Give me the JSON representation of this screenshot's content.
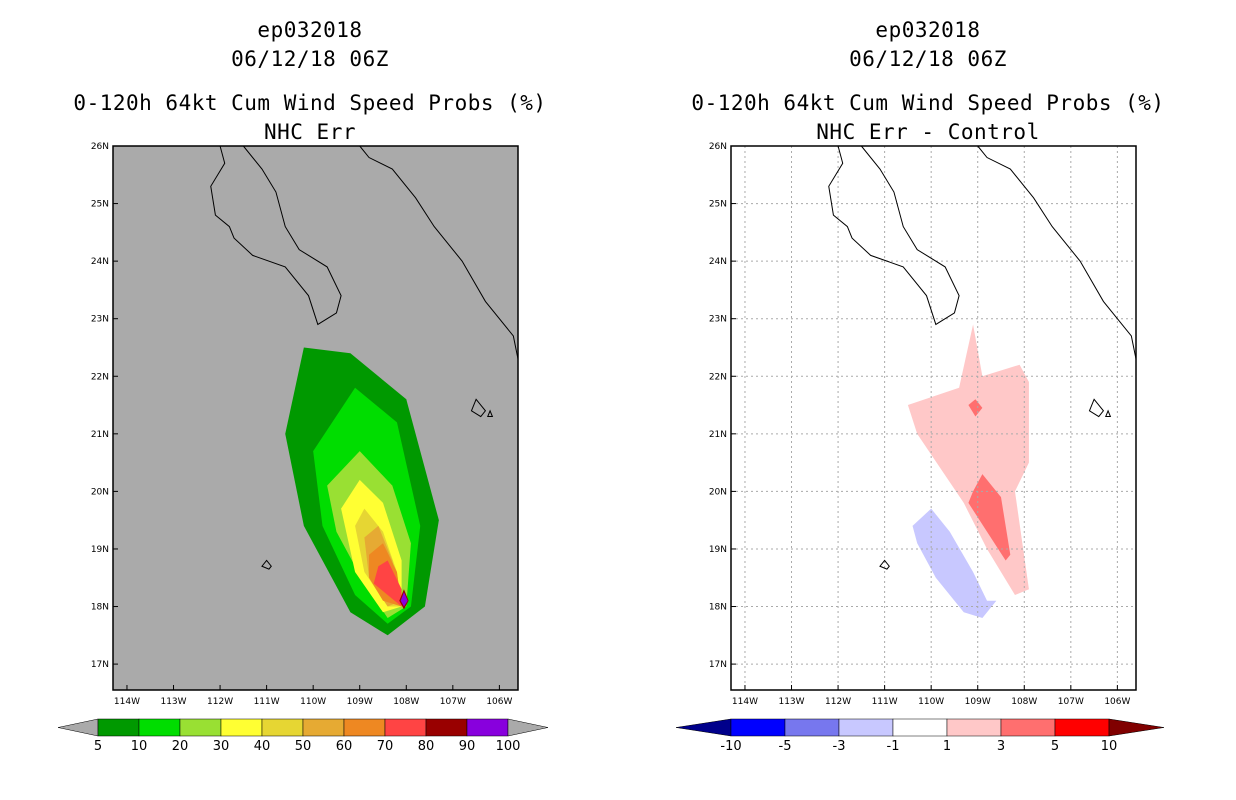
{
  "panels": [
    {
      "storm": "ep032018",
      "date": "06/12/18 06Z",
      "product": "0-120h 64kt Cum Wind Speed Probs (%)",
      "subtitle": "NHC Err",
      "xticks": [
        "114W",
        "113W",
        "112W",
        "111W",
        "110W",
        "109W",
        "108W",
        "107W",
        "106W"
      ],
      "yticks": [
        "17N",
        "18N",
        "19N",
        "20N",
        "21N",
        "22N",
        "23N",
        "24N",
        "25N",
        "26N"
      ],
      "colorbar_labels": [
        "5",
        "10",
        "20",
        "30",
        "40",
        "50",
        "60",
        "70",
        "80",
        "90",
        "100"
      ],
      "colorbar_colors": [
        "#009900",
        "#00dd00",
        "#99e033",
        "#ffff33",
        "#e6d633",
        "#e6aa33",
        "#ee8822",
        "#ff4444",
        "#990000",
        "#8800dd"
      ],
      "background": "#aaaaaa"
    },
    {
      "storm": "ep032018",
      "date": "06/12/18 06Z",
      "product": "0-120h 64kt Cum Wind Speed Probs (%)",
      "subtitle": "NHC Err - Control",
      "xticks": [
        "114W",
        "113W",
        "112W",
        "111W",
        "110W",
        "109W",
        "108W",
        "107W",
        "106W"
      ],
      "yticks": [
        "17N",
        "18N",
        "19N",
        "20N",
        "21N",
        "22N",
        "23N",
        "24N",
        "25N",
        "26N"
      ],
      "colorbar_labels": [
        "-10",
        "-5",
        "-3",
        "-1",
        "1",
        "3",
        "5",
        "10"
      ],
      "colorbar_colors": [
        "#0000ff",
        "#7777ee",
        "#c8c8ff",
        "#ffffff",
        "#ffc8c8",
        "#ff6f6f",
        "#ff0000"
      ],
      "colorbar_end_colors": [
        "#00008b",
        "#800000"
      ],
      "background": "#ffffff"
    }
  ],
  "chart_data": [
    {
      "type": "heatmap",
      "title": "0-120h 64kt Cum Wind Speed Probs (%)",
      "subtitle": "NHC Err",
      "x_range": [
        "114W",
        "106W"
      ],
      "y_range": [
        "17N",
        "26N"
      ],
      "levels": [
        5,
        10,
        20,
        30,
        40,
        50,
        60,
        70,
        80,
        90,
        100
      ],
      "contours": [
        {
          "level": 5,
          "lonlat": [
            [
              -110.6,
              21.0
            ],
            [
              -110.2,
              22.5
            ],
            [
              -109.2,
              22.4
            ],
            [
              -108.0,
              21.6
            ],
            [
              -107.3,
              19.5
            ],
            [
              -107.6,
              18.0
            ],
            [
              -108.4,
              17.5
            ],
            [
              -109.2,
              17.9
            ],
            [
              -110.2,
              19.4
            ]
          ]
        },
        {
          "level": 10,
          "lonlat": [
            [
              -110.0,
              20.7
            ],
            [
              -109.1,
              21.8
            ],
            [
              -108.2,
              21.2
            ],
            [
              -107.7,
              19.4
            ],
            [
              -107.9,
              18.0
            ],
            [
              -108.4,
              17.7
            ],
            [
              -109.1,
              18.2
            ],
            [
              -109.8,
              19.4
            ]
          ]
        },
        {
          "level": 20,
          "lonlat": [
            [
              -109.7,
              20.1
            ],
            [
              -109.0,
              20.7
            ],
            [
              -108.3,
              20.1
            ],
            [
              -107.9,
              19.1
            ],
            [
              -108.0,
              18.0
            ],
            [
              -108.4,
              17.8
            ],
            [
              -108.9,
              18.4
            ],
            [
              -109.5,
              19.3
            ]
          ]
        },
        {
          "level": 30,
          "lonlat": [
            [
              -109.4,
              19.7
            ],
            [
              -109.0,
              20.2
            ],
            [
              -108.5,
              19.8
            ],
            [
              -108.1,
              18.8
            ],
            [
              -108.1,
              18.0
            ],
            [
              -108.5,
              17.9
            ],
            [
              -109.1,
              18.6
            ]
          ]
        },
        {
          "level": 40,
          "lonlat": [
            [
              -109.1,
              19.4
            ],
            [
              -108.9,
              19.7
            ],
            [
              -108.5,
              19.3
            ],
            [
              -108.2,
              18.6
            ],
            [
              -108.1,
              18.0
            ],
            [
              -108.4,
              18.0
            ],
            [
              -108.9,
              18.6
            ]
          ]
        },
        {
          "level": 50,
          "lonlat": [
            [
              -108.9,
              19.2
            ],
            [
              -108.6,
              19.4
            ],
            [
              -108.3,
              18.8
            ],
            [
              -108.1,
              18.1
            ],
            [
              -108.4,
              18.0
            ],
            [
              -108.8,
              18.5
            ]
          ]
        },
        {
          "level": 60,
          "lonlat": [
            [
              -108.8,
              18.9
            ],
            [
              -108.5,
              19.1
            ],
            [
              -108.2,
              18.6
            ],
            [
              -108.1,
              18.0
            ],
            [
              -108.5,
              18.1
            ],
            [
              -108.8,
              18.5
            ]
          ]
        },
        {
          "level": 70,
          "lonlat": [
            [
              -108.6,
              18.7
            ],
            [
              -108.4,
              18.8
            ],
            [
              -108.1,
              18.3
            ],
            [
              -108.1,
              18.0
            ],
            [
              -108.4,
              18.2
            ],
            [
              -108.7,
              18.4
            ]
          ]
        },
        {
          "level": 80,
          "lonlat": [
            [
              -108.05,
              18.3
            ],
            [
              -107.95,
              18.1
            ],
            [
              -108.05,
              17.95
            ],
            [
              -108.15,
              18.1
            ]
          ]
        },
        {
          "level": 90,
          "lonlat": [
            [
              -108.05,
              18.25
            ],
            [
              -107.97,
              18.1
            ],
            [
              -108.05,
              18.0
            ],
            [
              -108.12,
              18.1
            ]
          ]
        }
      ]
    },
    {
      "type": "heatmap",
      "title": "0-120h 64kt Cum Wind Speed Probs (%)",
      "subtitle": "NHC Err - Control",
      "x_range": [
        "114W",
        "106W"
      ],
      "y_range": [
        "17N",
        "26N"
      ],
      "levels": [
        -10,
        -5,
        -3,
        -1,
        1,
        3,
        5,
        10
      ],
      "contours": [
        {
          "level": 1,
          "lonlat": [
            [
              -110.5,
              21.5
            ],
            [
              -109.4,
              21.8
            ],
            [
              -109.1,
              22.9
            ],
            [
              -108.9,
              22.0
            ],
            [
              -108.1,
              22.2
            ],
            [
              -107.9,
              21.9
            ],
            [
              -107.9,
              20.5
            ],
            [
              -108.2,
              20.0
            ],
            [
              -107.9,
              18.3
            ],
            [
              -108.2,
              18.2
            ],
            [
              -108.8,
              19.0
            ],
            [
              -109.3,
              19.8
            ],
            [
              -110.3,
              21.0
            ]
          ]
        },
        {
          "level": 3,
          "lonlat": [
            [
              -109.2,
              21.5
            ],
            [
              -109.05,
              21.6
            ],
            [
              -108.9,
              21.45
            ],
            [
              -109.05,
              21.3
            ]
          ]
        },
        {
          "level": 3,
          "lonlat": [
            [
              -109.1,
              20.0
            ],
            [
              -108.9,
              20.3
            ],
            [
              -108.5,
              19.9
            ],
            [
              -108.3,
              18.9
            ],
            [
              -108.4,
              18.8
            ],
            [
              -108.8,
              19.3
            ],
            [
              -109.2,
              19.8
            ]
          ]
        },
        {
          "level": -3,
          "lonlat": [
            [
              -110.4,
              19.4
            ],
            [
              -110.0,
              19.7
            ],
            [
              -109.6,
              19.3
            ],
            [
              -109.1,
              18.6
            ],
            [
              -108.8,
              18.1
            ],
            [
              -108.6,
              18.1
            ],
            [
              -108.9,
              17.8
            ],
            [
              -109.3,
              17.9
            ],
            [
              -109.9,
              18.5
            ],
            [
              -110.3,
              19.1
            ]
          ]
        }
      ]
    }
  ]
}
